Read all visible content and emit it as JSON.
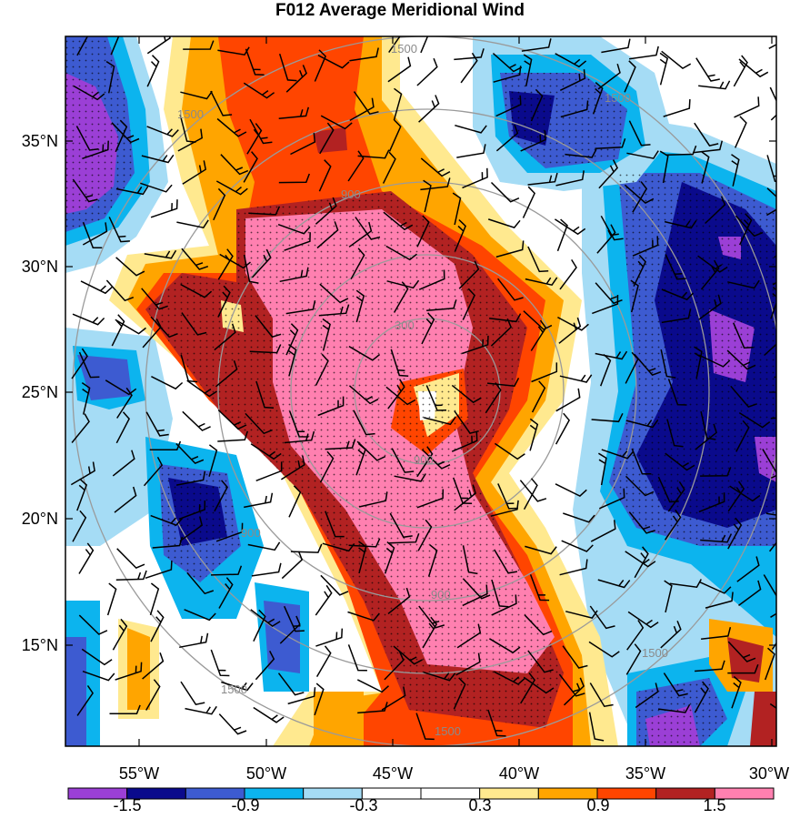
{
  "title": "F012 Average Meridional Wind",
  "lat_labels": [
    "35°N",
    "30°N",
    "25°N",
    "20°N",
    "15°N"
  ],
  "lon_labels": [
    "55°W",
    "50°W",
    "45°W",
    "40°W",
    "35°W",
    "30°W"
  ],
  "colorbar": {
    "colors": [
      "#9b3fd6",
      "#0a0a8c",
      "#3d5bd1",
      "#0cb4ee",
      "#a5dcf5",
      "#ffffff",
      "#ffffff",
      "#ffe98f",
      "#ffa500",
      "#ff4500",
      "#b22222",
      "#ff80b0"
    ],
    "labels": [
      "-1.5",
      "-0.9",
      "-0.3",
      "0.3",
      "0.9",
      "1.5"
    ]
  },
  "ring_labels": [
    "300",
    "900",
    "1500"
  ]
}
